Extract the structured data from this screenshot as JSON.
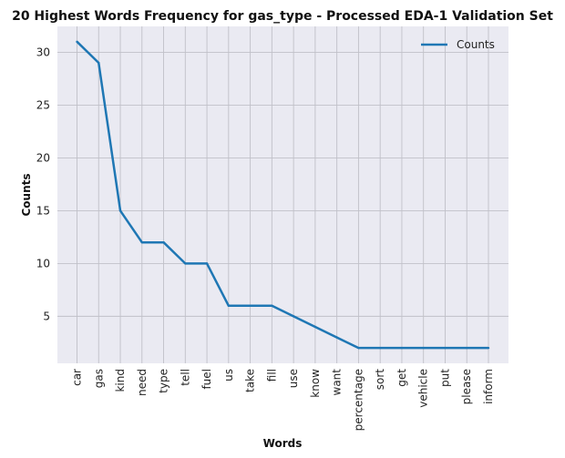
{
  "chart_data": {
    "type": "line",
    "title": "20 Highest Words Frequency for gas_type - Processed EDA-1 Validation Set",
    "xlabel": "Words",
    "ylabel": "Counts",
    "categories": [
      "car",
      "gas",
      "kind",
      "need",
      "type",
      "tell",
      "fuel",
      "us",
      "take",
      "fill",
      "use",
      "know",
      "want",
      "percentage",
      "sort",
      "get",
      "vehicle",
      "put",
      "please",
      "inform"
    ],
    "series": [
      {
        "name": "Counts",
        "values": [
          31,
          29,
          15,
          12,
          12,
          10,
          10,
          6,
          6,
          6,
          5,
          4,
          3,
          2,
          2,
          2,
          2,
          2,
          2,
          2
        ],
        "color": "#1f77b4"
      }
    ],
    "yticks": [
      5,
      10,
      15,
      20,
      25,
      30
    ],
    "ylim": [
      0.55,
      32.45
    ],
    "grid": true,
    "legend": "upper right",
    "background": "#eaeaf2",
    "grid_color": "#c0c0c8"
  }
}
